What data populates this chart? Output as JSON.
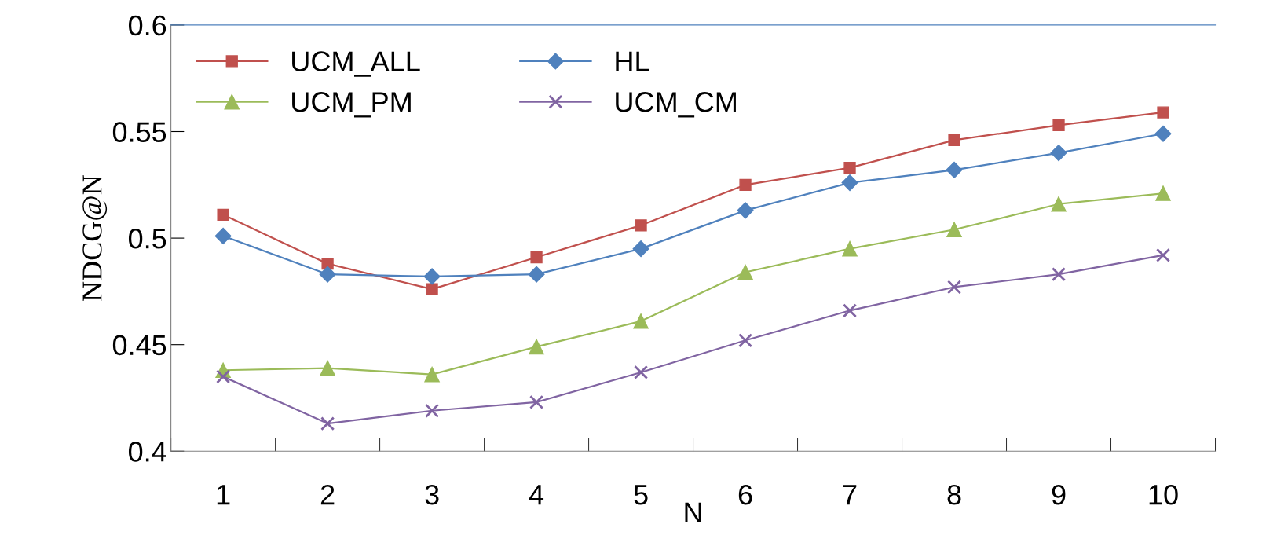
{
  "chart_data": {
    "type": "line",
    "xlabel": "N",
    "ylabel": "NDCG@N",
    "categories": [
      "1",
      "2",
      "3",
      "4",
      "5",
      "6",
      "7",
      "8",
      "9",
      "10"
    ],
    "ylim": [
      0.4,
      0.6
    ],
    "yticks": [
      0.4,
      0.45,
      0.5,
      0.55,
      0.6
    ],
    "grid": false,
    "legend": "top left",
    "series": [
      {
        "name": "UCM_ALL",
        "color": "#c0504d",
        "marker": "square",
        "values": [
          0.511,
          0.488,
          0.476,
          0.491,
          0.506,
          0.525,
          0.533,
          0.546,
          0.553,
          0.559
        ]
      },
      {
        "name": "HL",
        "color": "#4f81bd",
        "marker": "diamond",
        "values": [
          0.501,
          0.483,
          0.482,
          0.483,
          0.495,
          0.513,
          0.526,
          0.532,
          0.54,
          0.549
        ]
      },
      {
        "name": "UCM_PM",
        "color": "#9bbb59",
        "marker": "triangle",
        "values": [
          0.438,
          0.439,
          0.436,
          0.449,
          0.461,
          0.484,
          0.495,
          0.504,
          0.516,
          0.521
        ]
      },
      {
        "name": "UCM_CM",
        "color": "#8064a2",
        "marker": "cross",
        "values": [
          0.435,
          0.413,
          0.419,
          0.423,
          0.437,
          0.452,
          0.466,
          0.477,
          0.483,
          0.492
        ]
      }
    ]
  }
}
